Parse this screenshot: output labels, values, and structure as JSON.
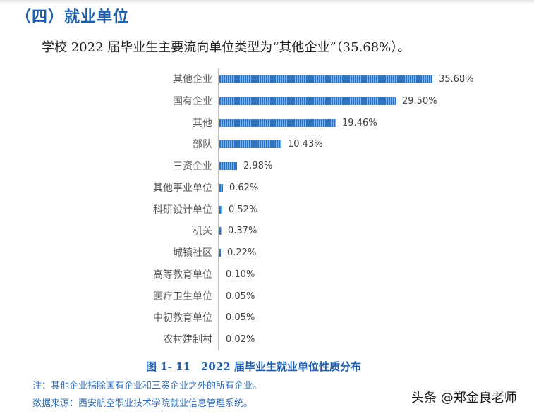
{
  "section_title": "（四）就业单位",
  "summary": "学校 2022 届毕业生主要流向单位类型为“其他企业”（35.68%）。",
  "figure_caption": "图 1- 11　2022 届毕业生就业单位性质分布",
  "notes": {
    "note": "注：其他企业指除国有企业和三资企业之外的所有企业。",
    "source": "数据来源：西安航空职业技术学院就业信息管理系统。"
  },
  "watermark": "头条 @郑金良老师",
  "colors": {
    "title_blue": "#1f5fae",
    "bar_blue": "#2e7bd0",
    "note_blue": "#2f6db5",
    "axis_gray": "#bfbfbf"
  },
  "chart_data": {
    "type": "bar",
    "orientation": "horizontal",
    "title": "2022 届毕业生就业单位性质分布",
    "xlabel": "",
    "ylabel": "",
    "grid": false,
    "legend": null,
    "value_format": "percent",
    "categories": [
      "其他企业",
      "国有企业",
      "其他",
      "部队",
      "三资企业",
      "其他事业单位",
      "科研设计单位",
      "机关",
      "城镇社区",
      "高等教育单位",
      "医疗卫生单位",
      "中初教育单位",
      "农村建制村"
    ],
    "values": [
      35.68,
      29.5,
      19.46,
      10.43,
      2.98,
      0.62,
      0.52,
      0.37,
      0.22,
      0.1,
      0.05,
      0.05,
      0.02
    ],
    "labels": [
      "35.68%",
      "29.50%",
      "19.46%",
      "10.43%",
      "2.98%",
      "0.62%",
      "0.52%",
      "0.37%",
      "0.22%",
      "0.10%",
      "0.05%",
      "0.05%",
      "0.02%"
    ]
  }
}
